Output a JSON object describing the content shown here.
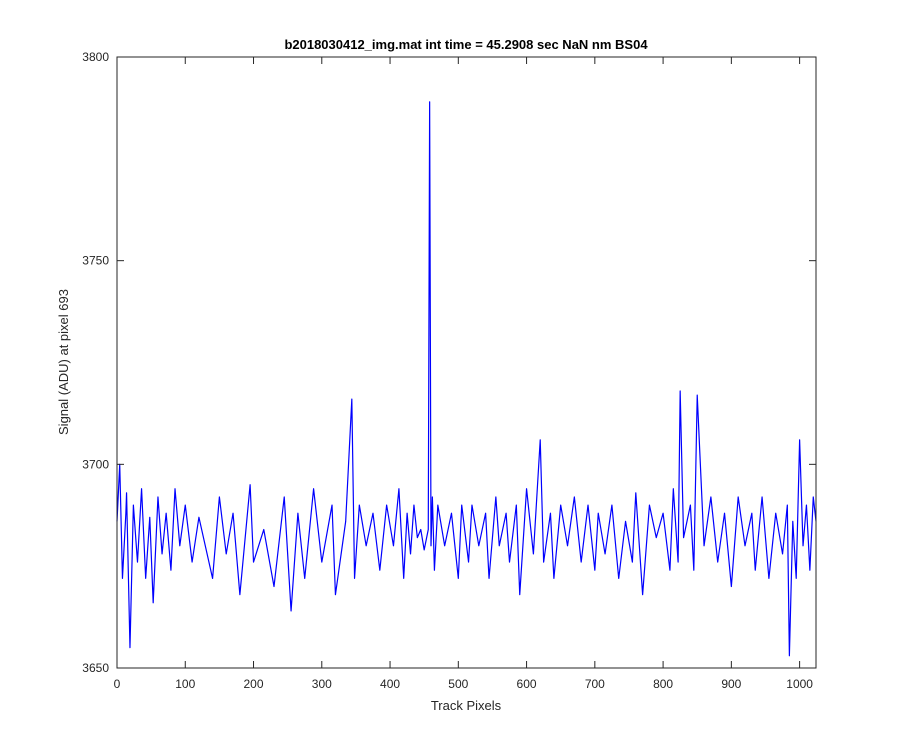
{
  "chart_data": {
    "type": "line",
    "title": "b2018030412_img.mat int time = 45.2908 sec  NaN nm BS04",
    "xlabel": "Track Pixels",
    "ylabel": "Signal (ADU) at pixel 693",
    "xlim": [
      0,
      1024
    ],
    "ylim": [
      3650,
      3800
    ],
    "xticks": [
      0,
      100,
      200,
      300,
      400,
      500,
      600,
      700,
      800,
      900,
      1000
    ],
    "yticks": [
      3650,
      3700,
      3750,
      3800
    ],
    "grid": false,
    "series": [
      {
        "color": "#0000ff",
        "x": [
          0,
          4,
          8,
          13,
          14,
          19,
          24,
          30,
          36,
          42,
          48,
          53,
          60,
          66,
          72,
          79,
          85,
          92,
          100,
          110,
          120,
          140,
          150,
          160,
          170,
          180,
          195,
          200,
          215,
          230,
          245,
          255,
          265,
          275,
          288,
          300,
          315,
          320,
          335,
          344,
          348,
          355,
          365,
          375,
          385,
          395,
          405,
          413,
          420,
          425,
          430,
          435,
          440,
          445,
          450,
          456,
          458,
          460,
          462,
          465,
          470,
          480,
          490,
          500,
          505,
          515,
          520,
          530,
          540,
          545,
          555,
          560,
          570,
          575,
          585,
          590,
          600,
          610,
          620,
          625,
          635,
          640,
          650,
          660,
          670,
          680,
          690,
          700,
          705,
          715,
          725,
          735,
          745,
          755,
          760,
          770,
          780,
          790,
          800,
          810,
          815,
          822,
          825,
          830,
          840,
          845,
          850,
          860,
          870,
          880,
          890,
          900,
          910,
          920,
          930,
          935,
          945,
          955,
          965,
          975,
          982,
          985,
          990,
          995,
          1000,
          1005,
          1010,
          1015,
          1020,
          1024
        ],
        "y": [
          3686,
          3700,
          3672,
          3688,
          3693,
          3655,
          3690,
          3676,
          3694,
          3672,
          3687,
          3666,
          3692,
          3678,
          3688,
          3674,
          3694,
          3680,
          3690,
          3676,
          3687,
          3672,
          3692,
          3678,
          3688,
          3668,
          3695,
          3676,
          3684,
          3670,
          3692,
          3664,
          3688,
          3672,
          3694,
          3676,
          3690,
          3668,
          3686,
          3716,
          3672,
          3690,
          3680,
          3688,
          3674,
          3690,
          3680,
          3694,
          3672,
          3688,
          3678,
          3690,
          3682,
          3684,
          3679,
          3684,
          3789,
          3680,
          3692,
          3674,
          3690,
          3680,
          3688,
          3672,
          3690,
          3676,
          3690,
          3680,
          3688,
          3672,
          3692,
          3680,
          3688,
          3676,
          3690,
          3668,
          3694,
          3678,
          3706,
          3676,
          3688,
          3672,
          3690,
          3680,
          3692,
          3676,
          3690,
          3674,
          3688,
          3678,
          3690,
          3672,
          3686,
          3676,
          3693,
          3668,
          3690,
          3682,
          3688,
          3674,
          3694,
          3676,
          3718,
          3682,
          3690,
          3674,
          3717,
          3680,
          3692,
          3676,
          3688,
          3670,
          3692,
          3680,
          3688,
          3674,
          3692,
          3672,
          3688,
          3678,
          3690,
          3653,
          3686,
          3672,
          3706,
          3680,
          3690,
          3674,
          3692,
          3686
        ]
      }
    ]
  }
}
